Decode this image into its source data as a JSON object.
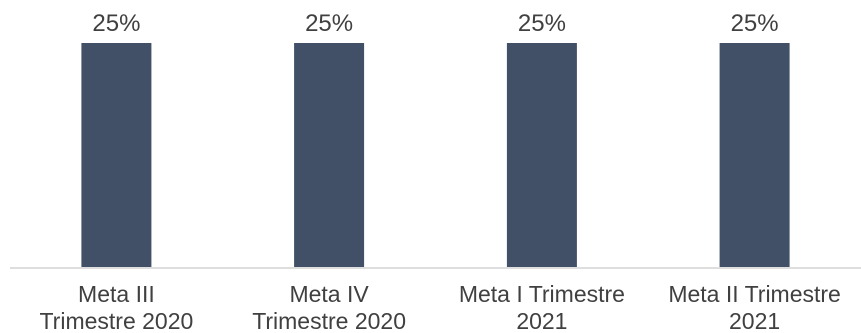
{
  "chart_data": {
    "type": "bar",
    "categories": [
      [
        "Meta III",
        "Trimestre 2020"
      ],
      [
        "Meta IV",
        "Trimestre 2020"
      ],
      [
        "Meta I Trimestre",
        "2021"
      ],
      [
        "Meta II Trimestre",
        "2021"
      ]
    ],
    "values": [
      25,
      25,
      25,
      25
    ],
    "data_labels": [
      "25%",
      "25%",
      "25%",
      "25%"
    ],
    "title": "",
    "xlabel": "",
    "ylabel": "",
    "ylim": [
      0,
      25
    ],
    "grid": false,
    "legend": "none",
    "colors": {
      "bar": "#415066",
      "baseline": "#d4d4d4",
      "text": "#404040"
    }
  }
}
